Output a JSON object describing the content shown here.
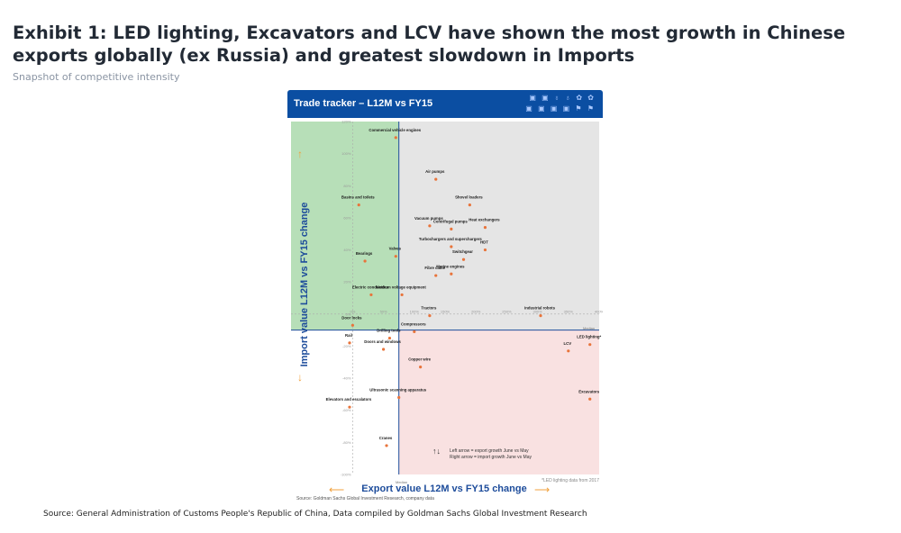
{
  "header": {
    "title": "Exhibit 1: LED lighting, Excavators and LCV have shown the most growth in Chinese exports globally (ex Russia) and greatest slowdown in Imports",
    "subtitle": "Snapshot of competitive intensity"
  },
  "footer": {
    "source": "Source: General Administration of Customs People's Republic of China, Data compiled by Goldman Sachs Global Investment Research"
  },
  "panel": {
    "banner_title": "Trade tracker – L12M vs FY15",
    "banner_icons": "▣ ▣ ♁ ♁ ✿ ✿ ▣ ▣ ▣ ▣ ⚑ ⚑",
    "y_axis_label": "Import value L12M vs FY15 change",
    "x_axis_label": "Export value L12M vs FY15 change",
    "arrow_left": "⟵",
    "arrow_right": "⟶",
    "arrow_up": "↑",
    "arrow_down": "↓",
    "panel_source": "Source: Goldman Sachs Global Investment Research, company data",
    "note": "*LED lighting data from 2017",
    "median_x_label": "Median",
    "median_y_label": "Median",
    "legend_arrows": "↑↓",
    "legend_line1": "Left arrow = export growth June vs May",
    "legend_line2": "Right arrow = import growth June vs May",
    "colors": {
      "green_quadrant": "#b7dfb8",
      "red_quadrant": "#f9e1e1",
      "grey_quadrant": "#e5e5e5",
      "point": "#e8743b",
      "axis_blue": "#1d4c9b",
      "arrow_orange": "#f0a03c"
    }
  },
  "chart_data": {
    "type": "scatter",
    "title": "Trade tracker – L12M vs FY15",
    "xlabel": "Export value L12M vs FY15 change",
    "ylabel": "Import value L12M vs FY15 change",
    "xlim": [
      -100,
      400
    ],
    "ylim": [
      -100,
      120
    ],
    "x_ticks": [
      "0%",
      "50%",
      "100%",
      "150%",
      "200%",
      "250%",
      "300%",
      "350%",
      "400%"
    ],
    "y_ticks": [
      "120%",
      "100%",
      "80%",
      "60%",
      "40%",
      "20%",
      "0%",
      "-20%",
      "-40%",
      "-60%",
      "-80%",
      "-100%"
    ],
    "median_x": 75,
    "median_y": -10,
    "points": [
      {
        "label": "Commercial vehicle engines",
        "x": 70,
        "y": 110
      },
      {
        "label": "Basins and toilets",
        "x": 10,
        "y": 68
      },
      {
        "label": "Air pumps",
        "x": 135,
        "y": 84
      },
      {
        "label": "Shovel loaders",
        "x": 190,
        "y": 68
      },
      {
        "label": "Vacuum pumps",
        "x": 125,
        "y": 55
      },
      {
        "label": "Centrifugal pumps",
        "x": 160,
        "y": 53
      },
      {
        "label": "Heat exchangers",
        "x": 215,
        "y": 54
      },
      {
        "label": "Turbochargers and superchargers",
        "x": 160,
        "y": 42
      },
      {
        "label": "HDT",
        "x": 215,
        "y": 40
      },
      {
        "label": "Valves",
        "x": 70,
        "y": 36
      },
      {
        "label": "Switchgear",
        "x": 180,
        "y": 34
      },
      {
        "label": "Bearings",
        "x": 20,
        "y": 33
      },
      {
        "label": "Marine engines",
        "x": 160,
        "y": 25
      },
      {
        "label": "Fibre cable",
        "x": 135,
        "y": 24
      },
      {
        "label": "Electric conductors",
        "x": 30,
        "y": 12
      },
      {
        "label": "Medium voltage equipment",
        "x": 80,
        "y": 12
      },
      {
        "label": "Tractors",
        "x": 125,
        "y": -1
      },
      {
        "label": "Industrial robots",
        "x": 305,
        "y": -1
      },
      {
        "label": "Door locks",
        "x": 0,
        "y": -7
      },
      {
        "label": "Compressors",
        "x": 100,
        "y": -11
      },
      {
        "label": "Drilling tools",
        "x": 60,
        "y": -15
      },
      {
        "label": "Rail",
        "x": -5,
        "y": -18
      },
      {
        "label": "Doors and windows",
        "x": 50,
        "y": -22
      },
      {
        "label": "LCV",
        "x": 350,
        "y": -23
      },
      {
        "label": "LED lighting*",
        "x": 385,
        "y": -19
      },
      {
        "label": "Copper wire",
        "x": 110,
        "y": -33
      },
      {
        "label": "Ultrasonic scanning apparatus",
        "x": 75,
        "y": -52
      },
      {
        "label": "Elevators and escalators",
        "x": -5,
        "y": -58
      },
      {
        "label": "Excavators",
        "x": 385,
        "y": -53
      },
      {
        "label": "Cranes",
        "x": 55,
        "y": -82
      }
    ]
  }
}
